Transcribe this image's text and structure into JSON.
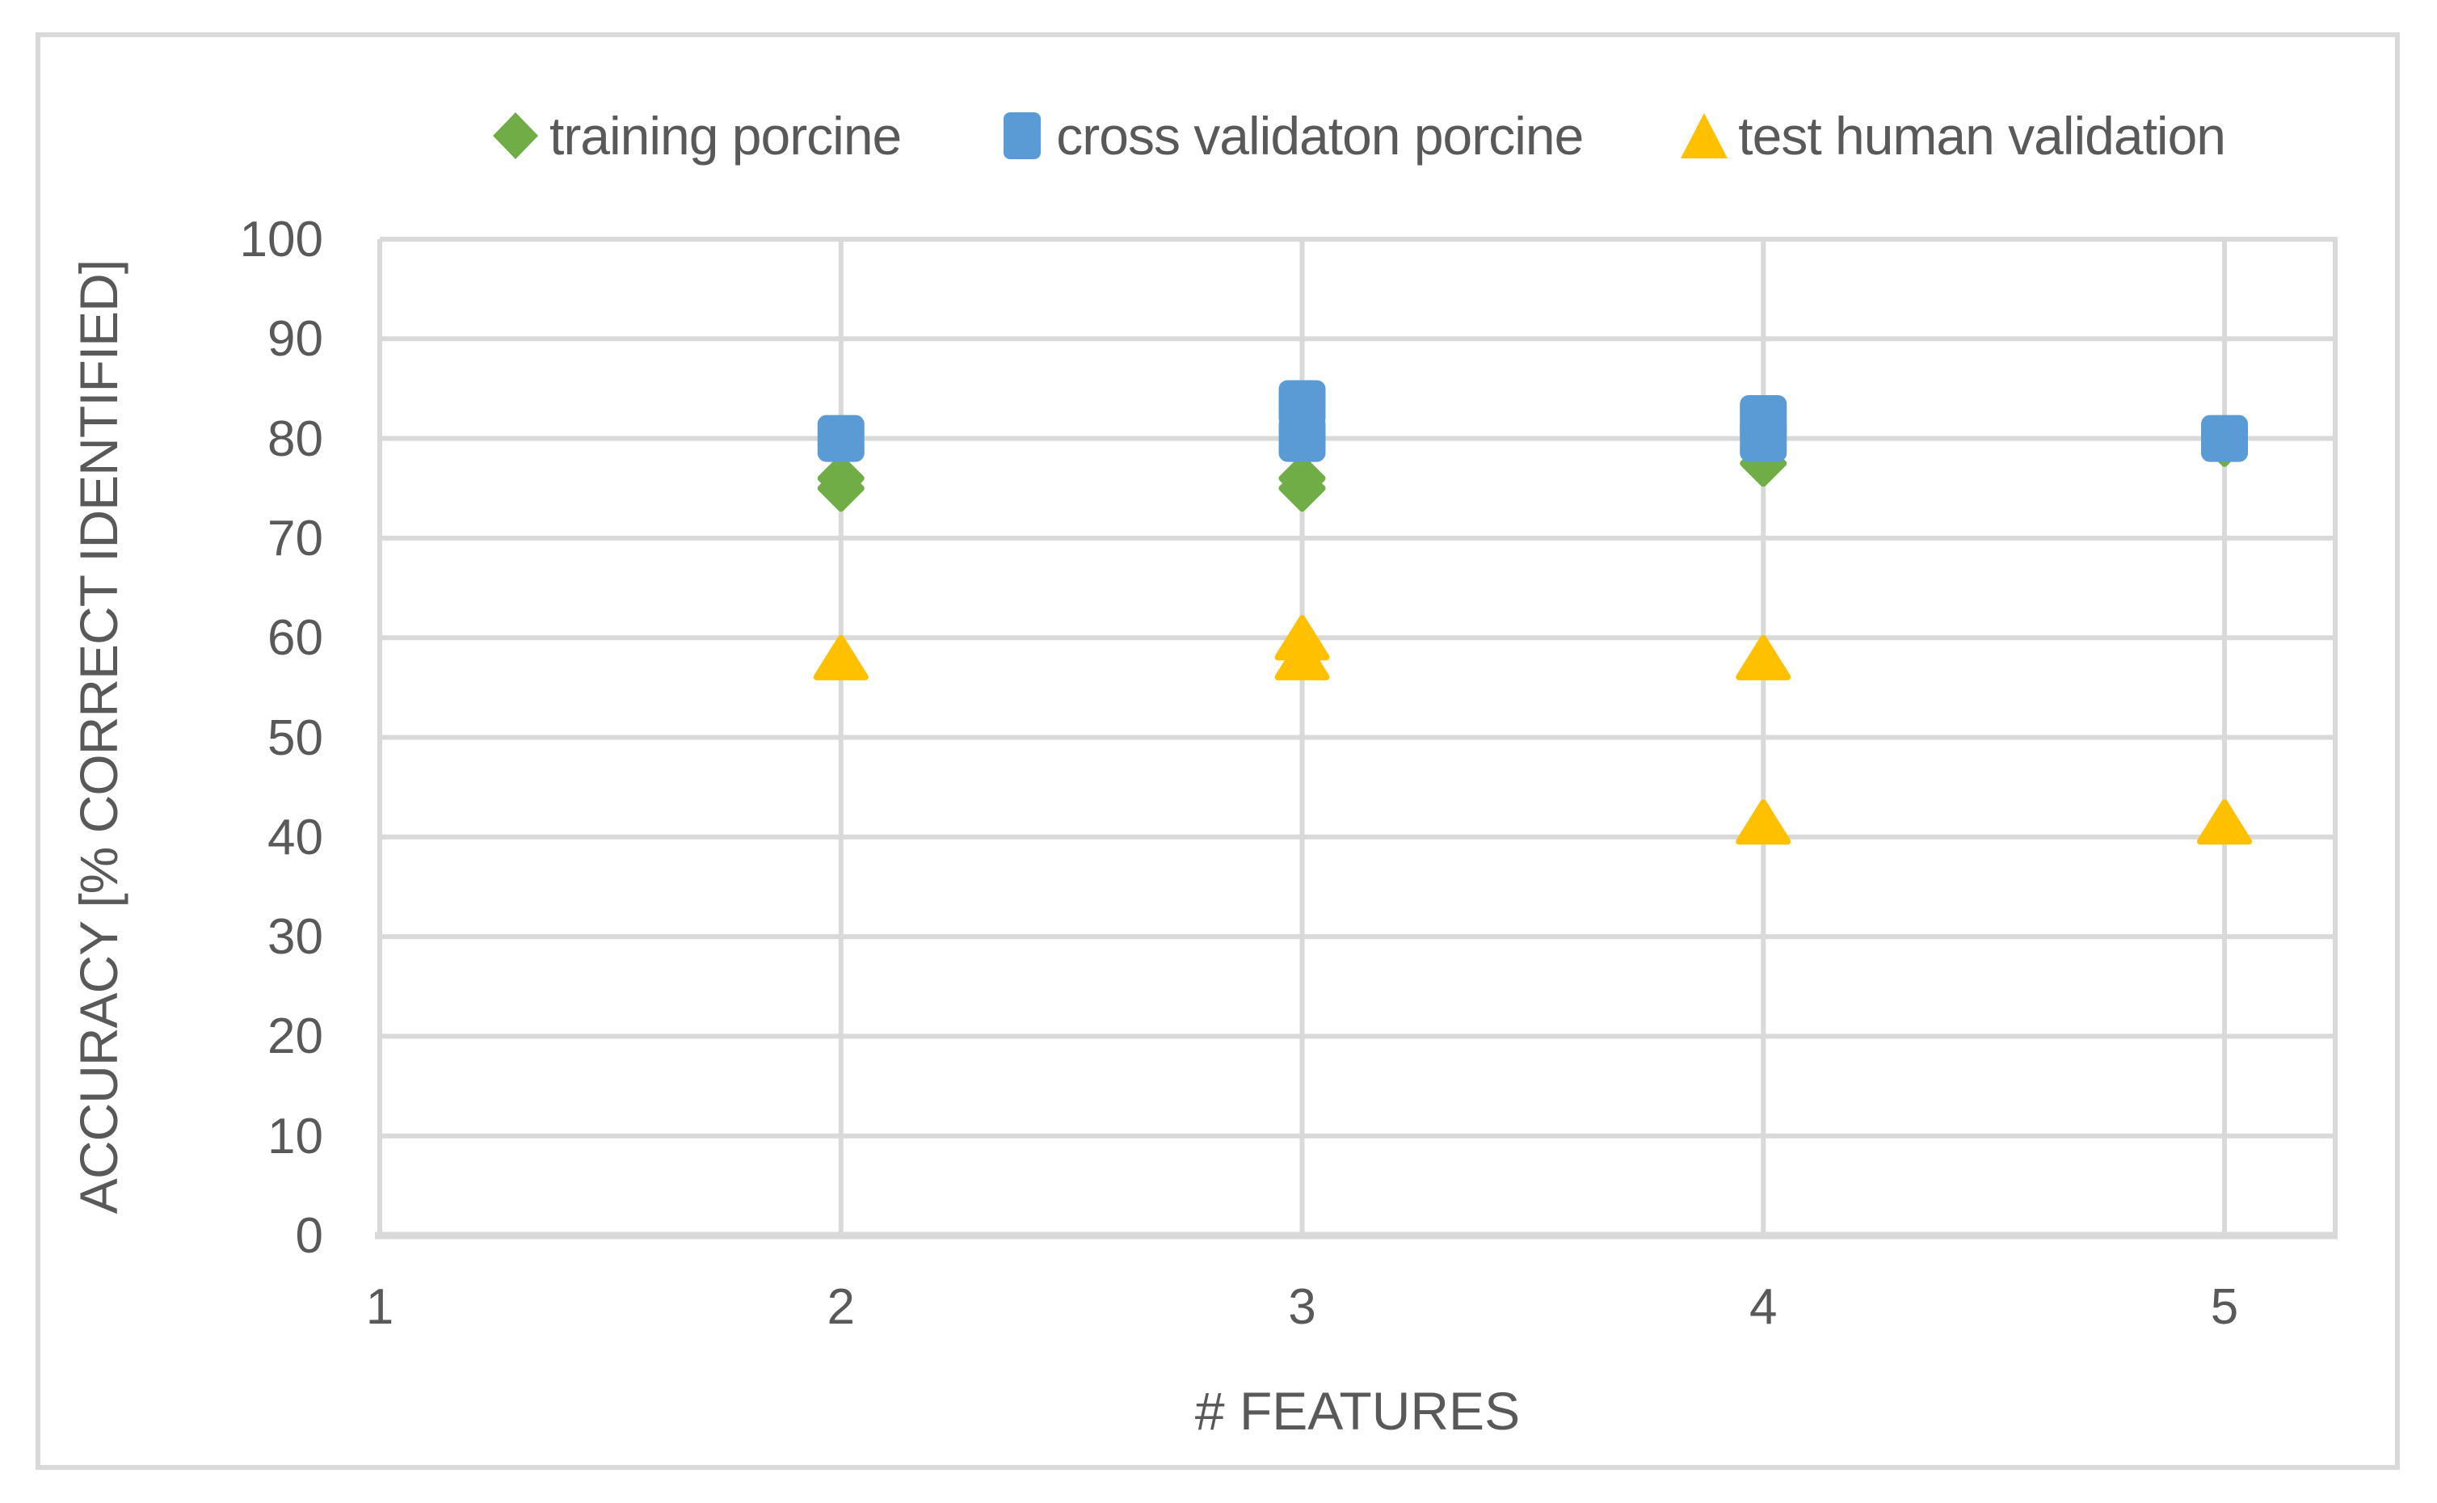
{
  "figure": {
    "background": "#ffffff",
    "frame_border_color": "#d9d9d9",
    "text_color": "#595959",
    "gridline_color": "#d9d9d9"
  },
  "chart_data": {
    "type": "scatter",
    "title": "",
    "xlabel": "# FEATURES",
    "ylabel": "ACCURACY [% CORRECT IDENTIFIED]",
    "xlim": [
      1,
      5.24
    ],
    "ylim": [
      0,
      100
    ],
    "x_ticks": [
      1,
      2,
      3,
      4,
      5
    ],
    "y_ticks": [
      0,
      10,
      20,
      30,
      40,
      50,
      60,
      70,
      80,
      90,
      100
    ],
    "grid": true,
    "legend_position": "top-center",
    "series": [
      {
        "name": "training porcine",
        "marker": "diamond",
        "color": "#70AD47",
        "points": [
          {
            "x": 2,
            "y": 76
          },
          {
            "x": 2,
            "y": 75
          },
          {
            "x": 3,
            "y": 76
          },
          {
            "x": 3,
            "y": 75
          },
          {
            "x": 4,
            "y": 77.5
          },
          {
            "x": 5,
            "y": 79.5
          }
        ]
      },
      {
        "name": "cross validaton porcine",
        "marker": "square",
        "color": "#5B9BD5",
        "points": [
          {
            "x": 2,
            "y": 80
          },
          {
            "x": 3,
            "y": 80
          },
          {
            "x": 3,
            "y": 83.5
          },
          {
            "x": 4,
            "y": 80
          },
          {
            "x": 4,
            "y": 82
          },
          {
            "x": 5,
            "y": 80
          }
        ]
      },
      {
        "name": "test human validation",
        "marker": "triangle",
        "color": "#FFC000",
        "points": [
          {
            "x": 2,
            "y": 58
          },
          {
            "x": 3,
            "y": 58
          },
          {
            "x": 3,
            "y": 60
          },
          {
            "x": 4,
            "y": 58
          },
          {
            "x": 4,
            "y": 41.5
          },
          {
            "x": 5,
            "y": 41.5
          }
        ]
      }
    ]
  }
}
